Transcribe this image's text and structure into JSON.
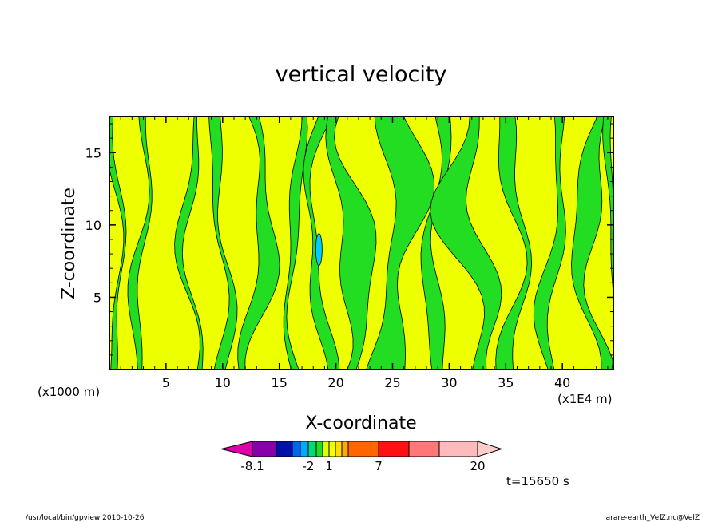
{
  "chart_data": {
    "type": "heatmap",
    "title": "vertical velocity",
    "xlabel": "X-coordinate",
    "ylabel": "Z-coordinate",
    "x_unit_left": "(x1000 m)",
    "x_unit_right": "(x1E4 m)",
    "x_ticks": [
      "5",
      "10",
      "15",
      "20",
      "25",
      "30",
      "35",
      "40"
    ],
    "y_ticks": [
      "5",
      "10",
      "15"
    ],
    "xlim": [
      0,
      44.5
    ],
    "ylim": [
      0,
      17.5
    ],
    "field_colors": {
      "yellow": "#eeff00",
      "green": "#22dd22",
      "cyan": "#00ccff"
    },
    "colorbar": {
      "labels": [
        "-8.1",
        "-2",
        "1",
        "7",
        "20"
      ],
      "colors": [
        "#dd00aa",
        "#8800aa",
        "#0011aa",
        "#0066ee",
        "#00aaff",
        "#00dd77",
        "#22dd22",
        "#ddff00",
        "#eeff00",
        "#ffdd00",
        "#ffaa00",
        "#ff6600",
        "#ff1111",
        "#ff7777",
        "#ffbbbb",
        "#ffcccc"
      ]
    },
    "time_label": "t=15650 s"
  },
  "footer": {
    "left": "/usr/local/bin/gpview   2010-10-26",
    "right": "arare-earth_VelZ.nc@VelZ"
  }
}
